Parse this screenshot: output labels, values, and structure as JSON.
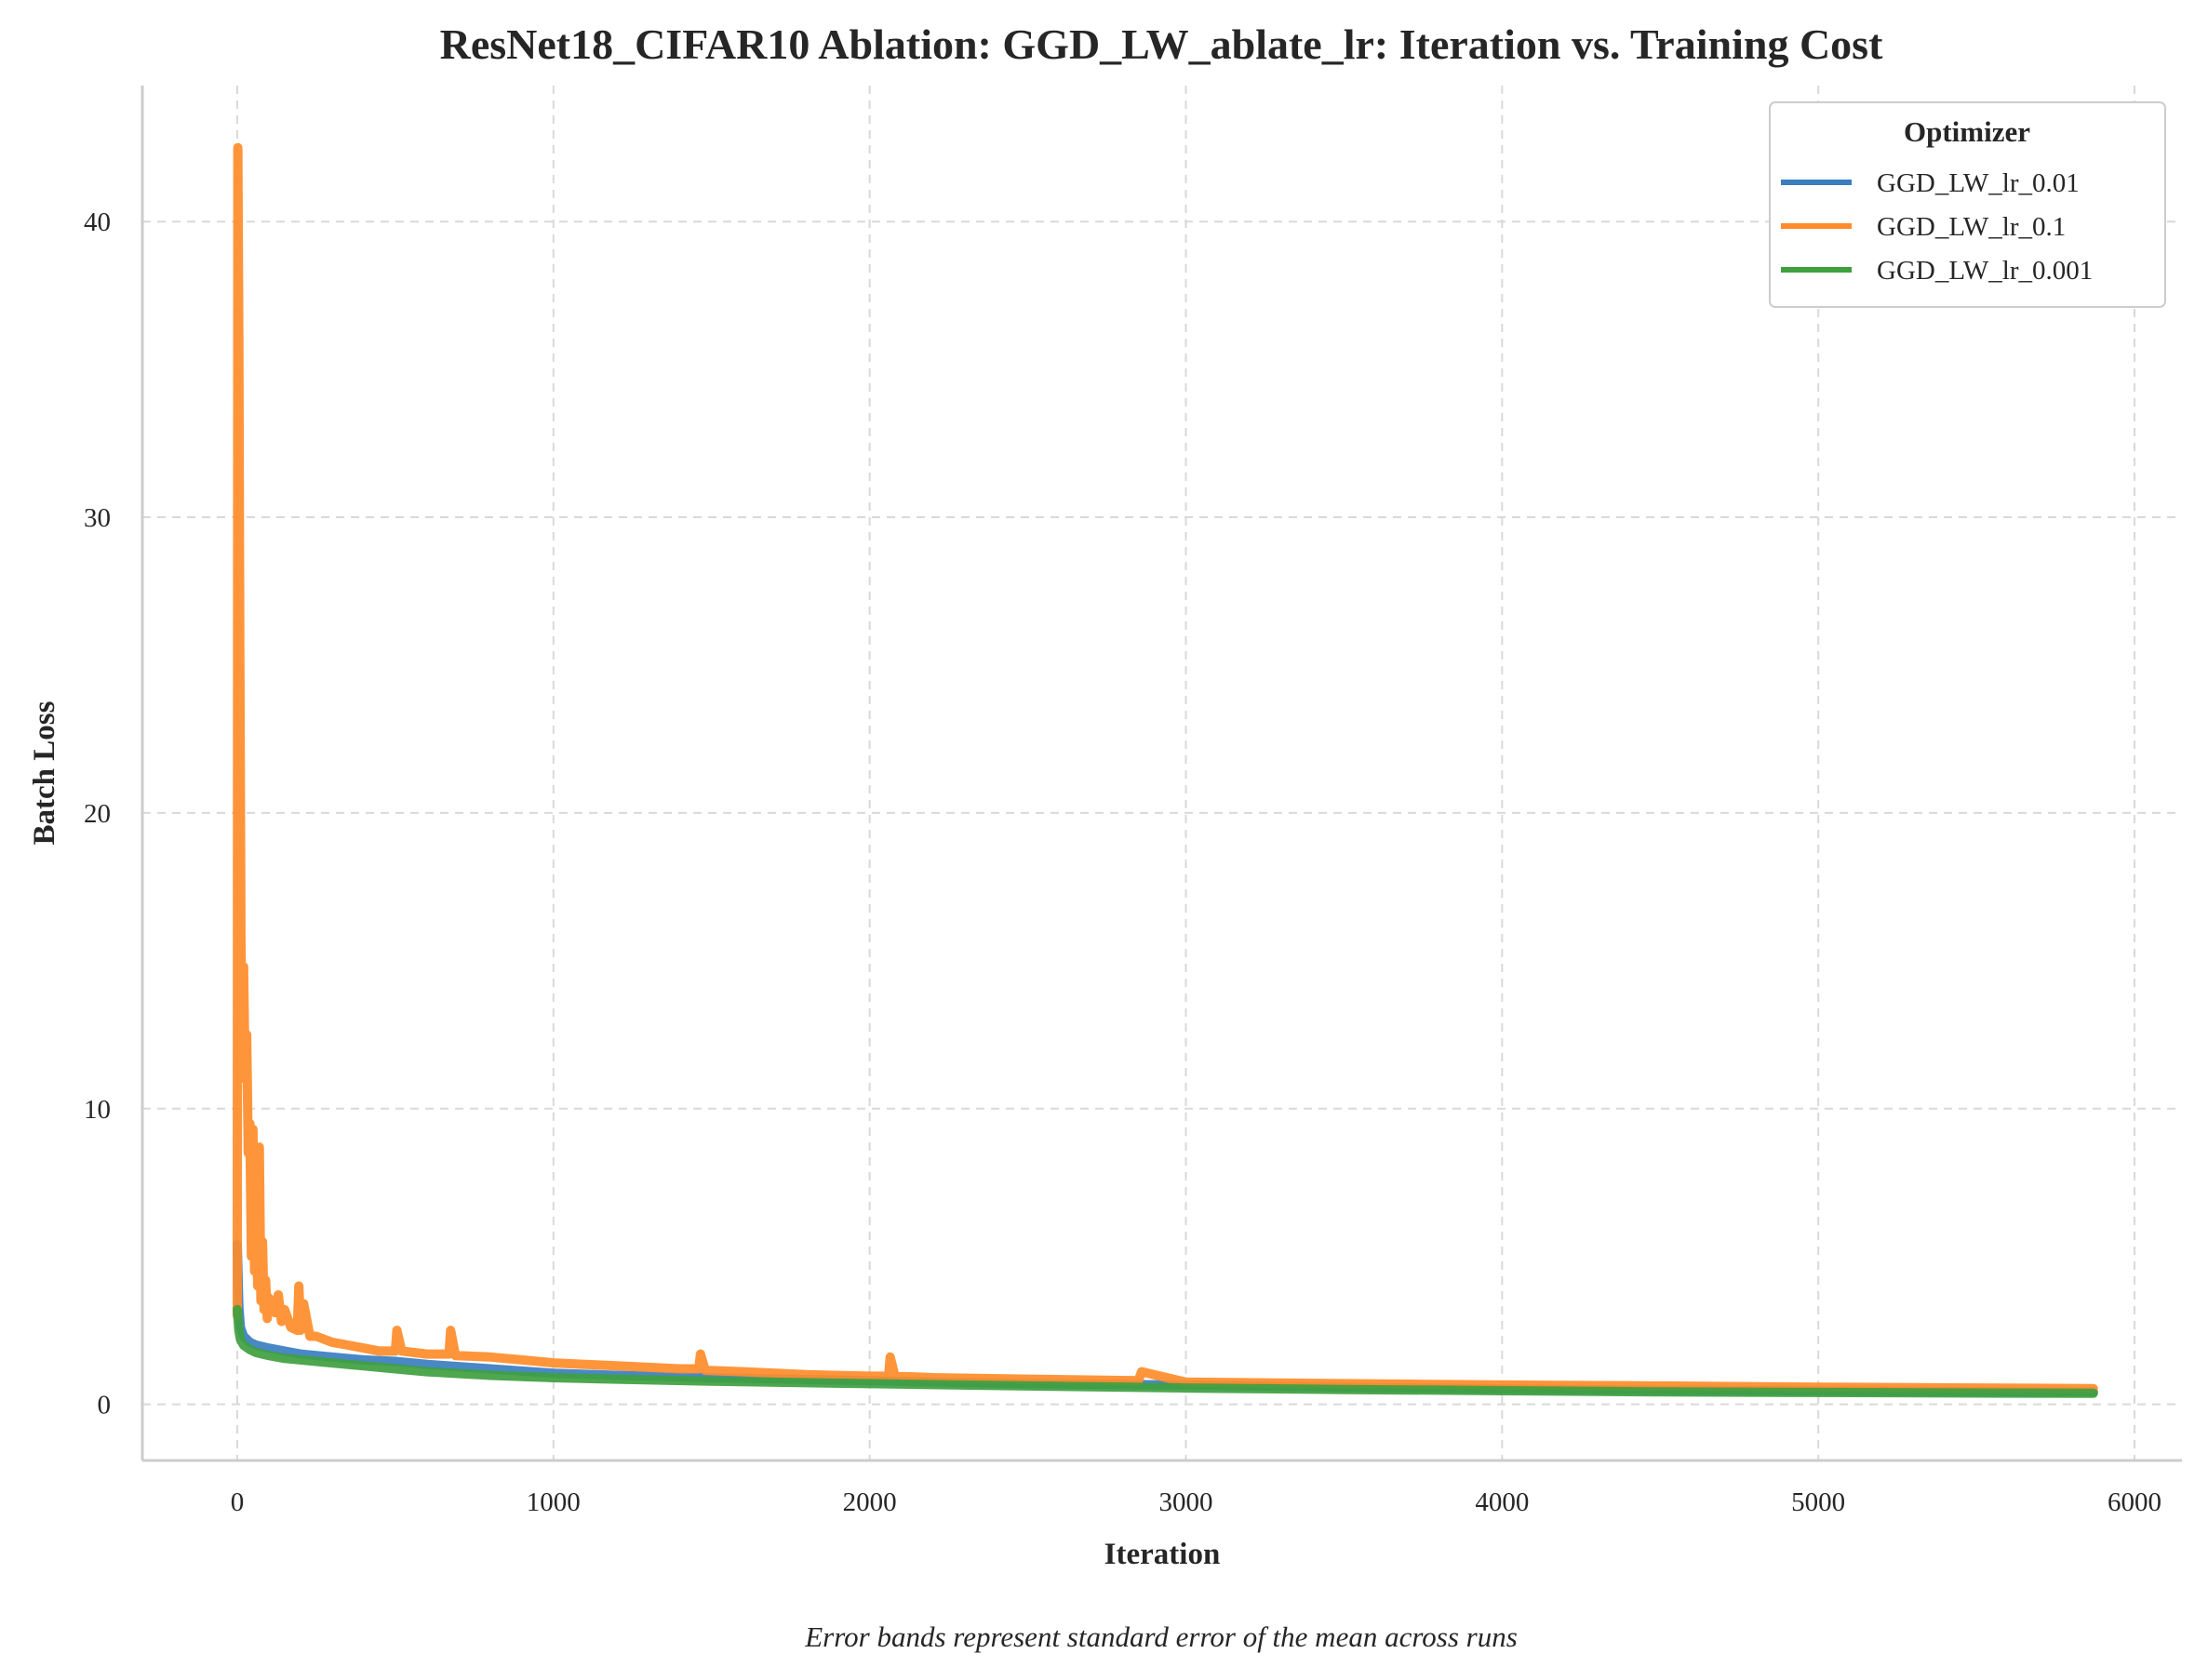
{
  "chart_data": {
    "type": "line",
    "title": "ResNet18_CIFAR10 Ablation: GGD_LW_ablate_lr: Iteration vs. Training Cost",
    "xlabel": "Iteration",
    "ylabel": "Batch Loss",
    "xlim": [
      -300,
      6150
    ],
    "ylim": [
      -1.9,
      44.6
    ],
    "xticks": [
      0,
      1000,
      2000,
      3000,
      4000,
      5000,
      6000
    ],
    "xtick_labels": [
      "0",
      "1000",
      "2000",
      "3000",
      "4000",
      "5000",
      "6000"
    ],
    "yticks": [
      0,
      10,
      20,
      30,
      40
    ],
    "ytick_labels": [
      "0",
      "10",
      "20",
      "30",
      "40"
    ],
    "grid": true,
    "legend": {
      "title": "Optimizer",
      "placement": "top-right"
    },
    "footnote": "Error bands represent standard error of the mean across runs",
    "series": [
      {
        "name": "GGD_LW_lr_0.01",
        "color": "#3a7ebf",
        "x": [
          0,
          5,
          10,
          20,
          40,
          60,
          100,
          150,
          200,
          300,
          400,
          500,
          600,
          800,
          1000,
          1200,
          1500,
          2000,
          2500,
          3000,
          3500,
          4000,
          4500,
          5000,
          5500,
          5870
        ],
        "y": [
          5.4,
          3.3,
          2.6,
          2.3,
          2.1,
          2.0,
          1.9,
          1.8,
          1.7,
          1.6,
          1.5,
          1.45,
          1.35,
          1.2,
          1.05,
          0.98,
          0.9,
          0.8,
          0.7,
          0.65,
          0.58,
          0.52,
          0.48,
          0.45,
          0.43,
          0.42
        ]
      },
      {
        "name": "GGD_LW_lr_0.1",
        "color": "#ff8c2a",
        "x": [
          0,
          2,
          5,
          8,
          12,
          15,
          20,
          25,
          30,
          35,
          40,
          45,
          50,
          55,
          60,
          65,
          70,
          75,
          80,
          85,
          90,
          95,
          100,
          110,
          120,
          130,
          140,
          150,
          170,
          190,
          195,
          200,
          210,
          230,
          250,
          300,
          350,
          400,
          450,
          500,
          505,
          520,
          600,
          670,
          675,
          690,
          800,
          900,
          1000,
          1100,
          1200,
          1300,
          1400,
          1460,
          1465,
          1480,
          1600,
          1800,
          2000,
          2060,
          2065,
          2080,
          2200,
          2500,
          2850,
          2860,
          3000,
          3500,
          4000,
          4500,
          5000,
          5500,
          5870
        ],
        "y": [
          3.0,
          42.5,
          36.0,
          26.0,
          15.5,
          13.0,
          14.8,
          11.0,
          12.5,
          8.5,
          9.5,
          5.0,
          9.3,
          4.5,
          6.0,
          4.0,
          8.7,
          3.5,
          5.5,
          3.2,
          4.2,
          2.9,
          3.6,
          3.2,
          3.1,
          3.7,
          2.8,
          3.2,
          2.6,
          2.5,
          4.0,
          2.5,
          3.4,
          2.3,
          2.3,
          2.1,
          2.0,
          1.9,
          1.8,
          1.8,
          2.5,
          1.8,
          1.7,
          1.7,
          2.5,
          1.65,
          1.6,
          1.5,
          1.4,
          1.35,
          1.3,
          1.25,
          1.2,
          1.2,
          1.7,
          1.15,
          1.1,
          1.0,
          0.95,
          0.95,
          1.6,
          0.95,
          0.9,
          0.85,
          0.8,
          1.1,
          0.75,
          0.7,
          0.65,
          0.62,
          0.58,
          0.55,
          0.53
        ]
      },
      {
        "name": "GGD_LW_lr_0.001",
        "color": "#3f9f3f",
        "x": [
          0,
          5,
          10,
          20,
          40,
          60,
          100,
          150,
          200,
          300,
          400,
          500,
          600,
          800,
          1000,
          1200,
          1500,
          2000,
          2500,
          3000,
          3500,
          4000,
          4500,
          5000,
          5500,
          5870
        ],
        "y": [
          3.2,
          2.5,
          2.2,
          2.0,
          1.85,
          1.75,
          1.65,
          1.55,
          1.5,
          1.4,
          1.3,
          1.2,
          1.1,
          0.98,
          0.9,
          0.85,
          0.78,
          0.7,
          0.62,
          0.55,
          0.5,
          0.46,
          0.42,
          0.4,
          0.38,
          0.37
        ]
      }
    ]
  }
}
